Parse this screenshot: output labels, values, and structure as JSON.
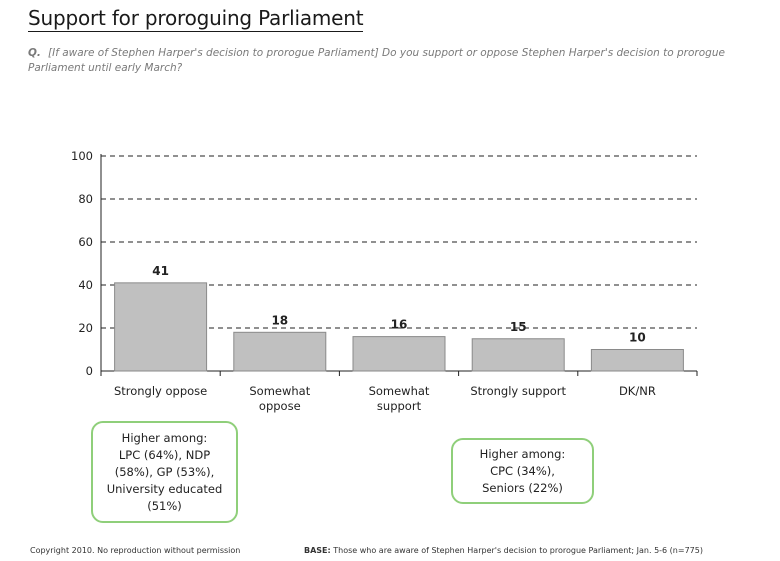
{
  "title": "Support for proroguing Parliament",
  "question": {
    "label": "Q.",
    "text": "[If aware of Stephen Harper's decision to prorogue Parliament] Do you support or oppose Stephen Harper's decision to prorogue Parliament until early March?"
  },
  "chart_data": {
    "type": "bar",
    "categories": [
      [
        "Strongly oppose"
      ],
      [
        "Somewhat",
        "oppose"
      ],
      [
        "Somewhat",
        "support"
      ],
      [
        "Strongly support"
      ],
      [
        "DK/NR"
      ]
    ],
    "values": [
      41,
      18,
      16,
      15,
      10
    ],
    "data_labels": [
      "41",
      "18",
      "16",
      "15",
      "10"
    ],
    "ylim": [
      0,
      100
    ],
    "yticks": [
      0,
      20,
      40,
      60,
      80,
      100
    ],
    "grid": "dashed",
    "bar_color": "#c0c0c0",
    "bar_border": "#8a8a8a"
  },
  "callouts": {
    "oppose": {
      "lines": [
        "Higher among:",
        "LPC (64%), NDP",
        "(58%), GP (53%),",
        "University educated",
        "(51%)"
      ]
    },
    "support": {
      "lines": [
        "Higher among:",
        "CPC (34%),",
        "Seniors (22%)"
      ]
    }
  },
  "footer": {
    "copyright": "Copyright 2010. No reproduction without permission",
    "base_label": "BASE:",
    "base_text": " Those who are aware of Stephen Harper's decision to prorogue Parliament; Jan. 5-6 (n=775)"
  },
  "colors": {
    "callout_border": "#8fcf7a",
    "grid": "#222222"
  }
}
